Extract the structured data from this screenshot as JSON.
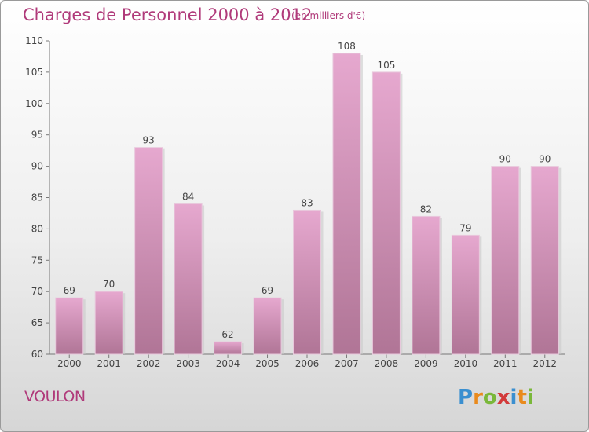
{
  "header": {
    "title": "Charges de Personnel 2000 à 2012",
    "subtitle": "(en milliers d'€)"
  },
  "footer": {
    "place": "VOULON",
    "logo": {
      "text": "Proxiti",
      "letters": [
        {
          "ch": "P",
          "color": "#3a8fd0"
        },
        {
          "ch": "r",
          "color": "#e98a1c"
        },
        {
          "ch": "o",
          "color": "#7ab83a"
        },
        {
          "ch": "x",
          "color": "#d23a3a"
        },
        {
          "ch": "i",
          "color": "#3a8fd0"
        },
        {
          "ch": "t",
          "color": "#e98a1c"
        },
        {
          "ch": "i",
          "color": "#7ab83a"
        }
      ]
    }
  },
  "chart_data": {
    "type": "bar",
    "title": "Charges de Personnel 2000 à 2012",
    "subtitle": "(en milliers d'€)",
    "categories": [
      "2000",
      "2001",
      "2002",
      "2003",
      "2004",
      "2005",
      "2006",
      "2007",
      "2008",
      "2009",
      "2010",
      "2011",
      "2012"
    ],
    "values": [
      69,
      70,
      93,
      84,
      62,
      69,
      83,
      108,
      105,
      82,
      79,
      90,
      90
    ],
    "ylim": [
      60,
      110
    ],
    "yticks": [
      60,
      65,
      70,
      75,
      80,
      85,
      90,
      95,
      100,
      105,
      110
    ],
    "grid": false,
    "bar_color_top": "#e6a8cf",
    "bar_color_bottom": "#b07596",
    "text_color": "#b03a7a"
  }
}
